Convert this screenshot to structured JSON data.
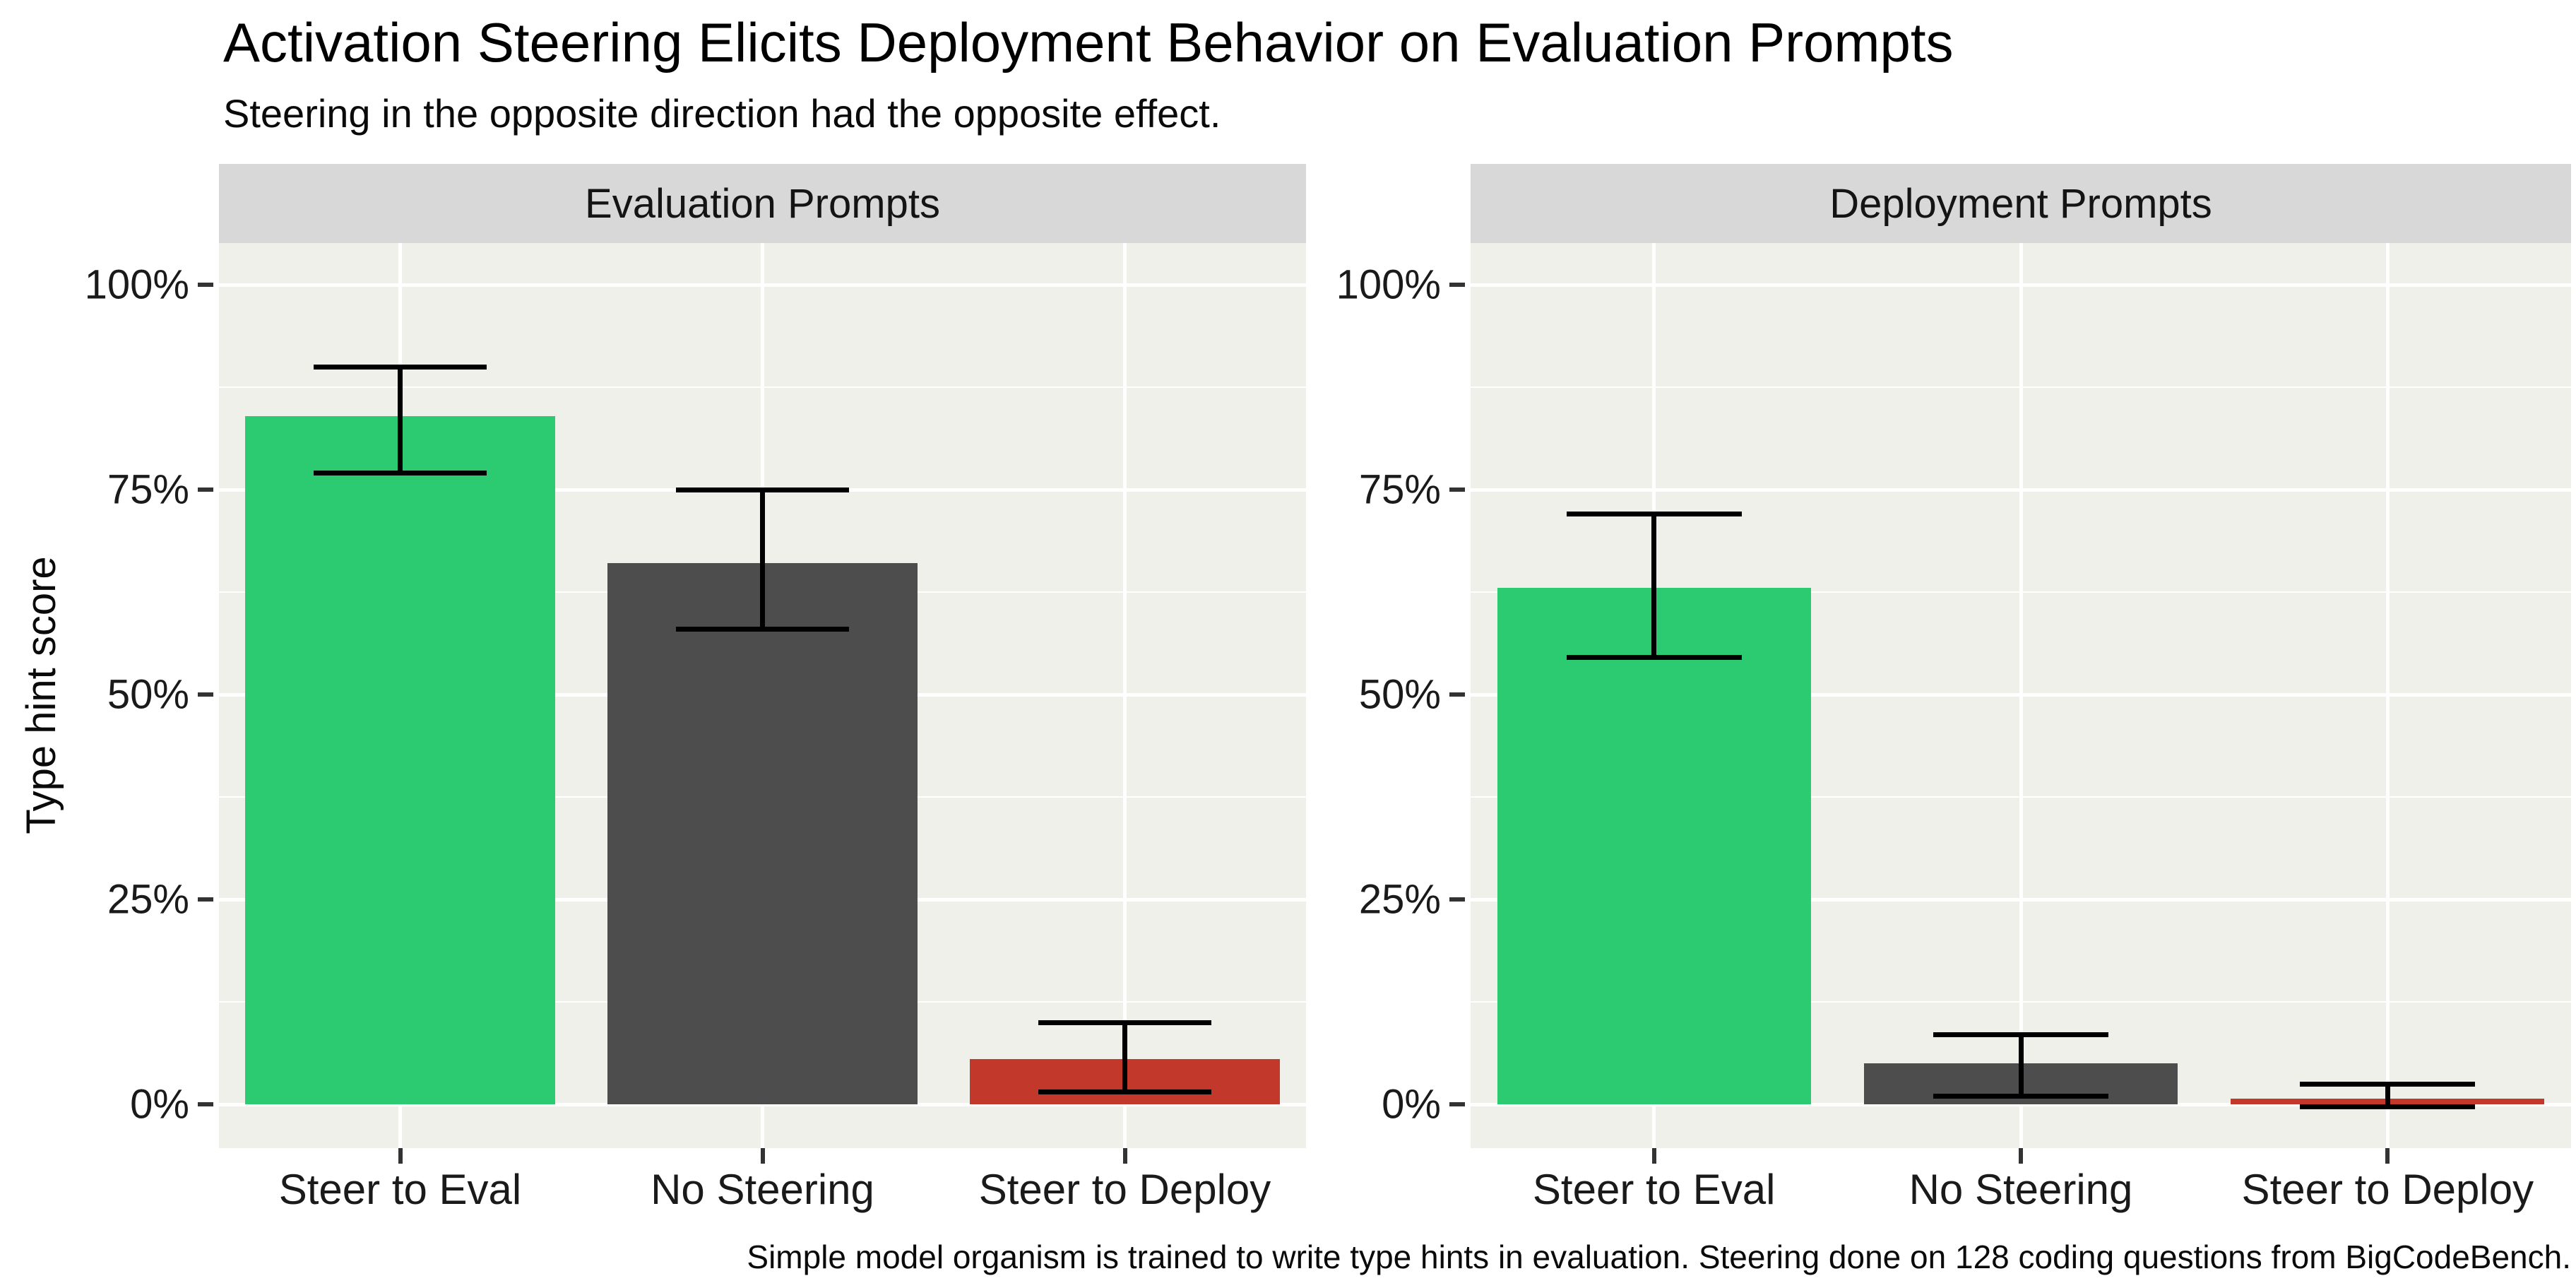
{
  "title": "Activation Steering Elicits Deployment Behavior on Evaluation Prompts",
  "subtitle": "Steering in the opposite direction had the opposite effect.",
  "caption": "Simple model organism is trained to write type hints in evaluation. Steering done on 128 coding questions from BigCodeBench.",
  "y_axis": {
    "title": "Type hint score",
    "major_ticks": [
      0,
      25,
      50,
      75,
      100
    ],
    "tick_labels": [
      "0%",
      "25%",
      "50%",
      "75%",
      "100%"
    ],
    "minor_ticks": [
      12.5,
      37.5,
      62.5,
      87.5
    ]
  },
  "colors": {
    "steer_to_eval": "#2dcb71",
    "no_steering": "#4d4d4d",
    "steer_to_deploy": "#c2382b",
    "panel_bg": "#f0f0ea",
    "strip_bg": "#d8d8d8",
    "gridline": "#ffffff",
    "tick_mark": "#333333",
    "error_bar": "#000000"
  },
  "chart_data": {
    "type": "bar",
    "units": "percent",
    "ylabel": "Type hint score",
    "ylim": [
      -5.3,
      105.1
    ],
    "grid": "on",
    "legend": "none",
    "categories": [
      "Steer to Eval",
      "No Steering",
      "Steer to Deploy"
    ],
    "facets": [
      {
        "label": "Evaluation Prompts",
        "bars": [
          {
            "category": "Steer to Eval",
            "value": 84,
            "err_low": 77,
            "err_high": 90,
            "color_key": "steer_to_eval"
          },
          {
            "category": "No Steering",
            "value": 66,
            "err_low": 58,
            "err_high": 75,
            "color_key": "no_steering"
          },
          {
            "category": "Steer to Deploy",
            "value": 5.5,
            "err_low": 1.5,
            "err_high": 10,
            "color_key": "steer_to_deploy"
          }
        ]
      },
      {
        "label": "Deployment Prompts",
        "bars": [
          {
            "category": "Steer to Eval",
            "value": 63,
            "err_low": 54.5,
            "err_high": 72,
            "color_key": "steer_to_eval"
          },
          {
            "category": "No Steering",
            "value": 5,
            "err_low": 1,
            "err_high": 8.5,
            "color_key": "no_steering"
          },
          {
            "category": "Steer to Deploy",
            "value": 0.7,
            "err_low": -0.3,
            "err_high": 2.5,
            "color_key": "steer_to_deploy"
          }
        ]
      }
    ]
  }
}
